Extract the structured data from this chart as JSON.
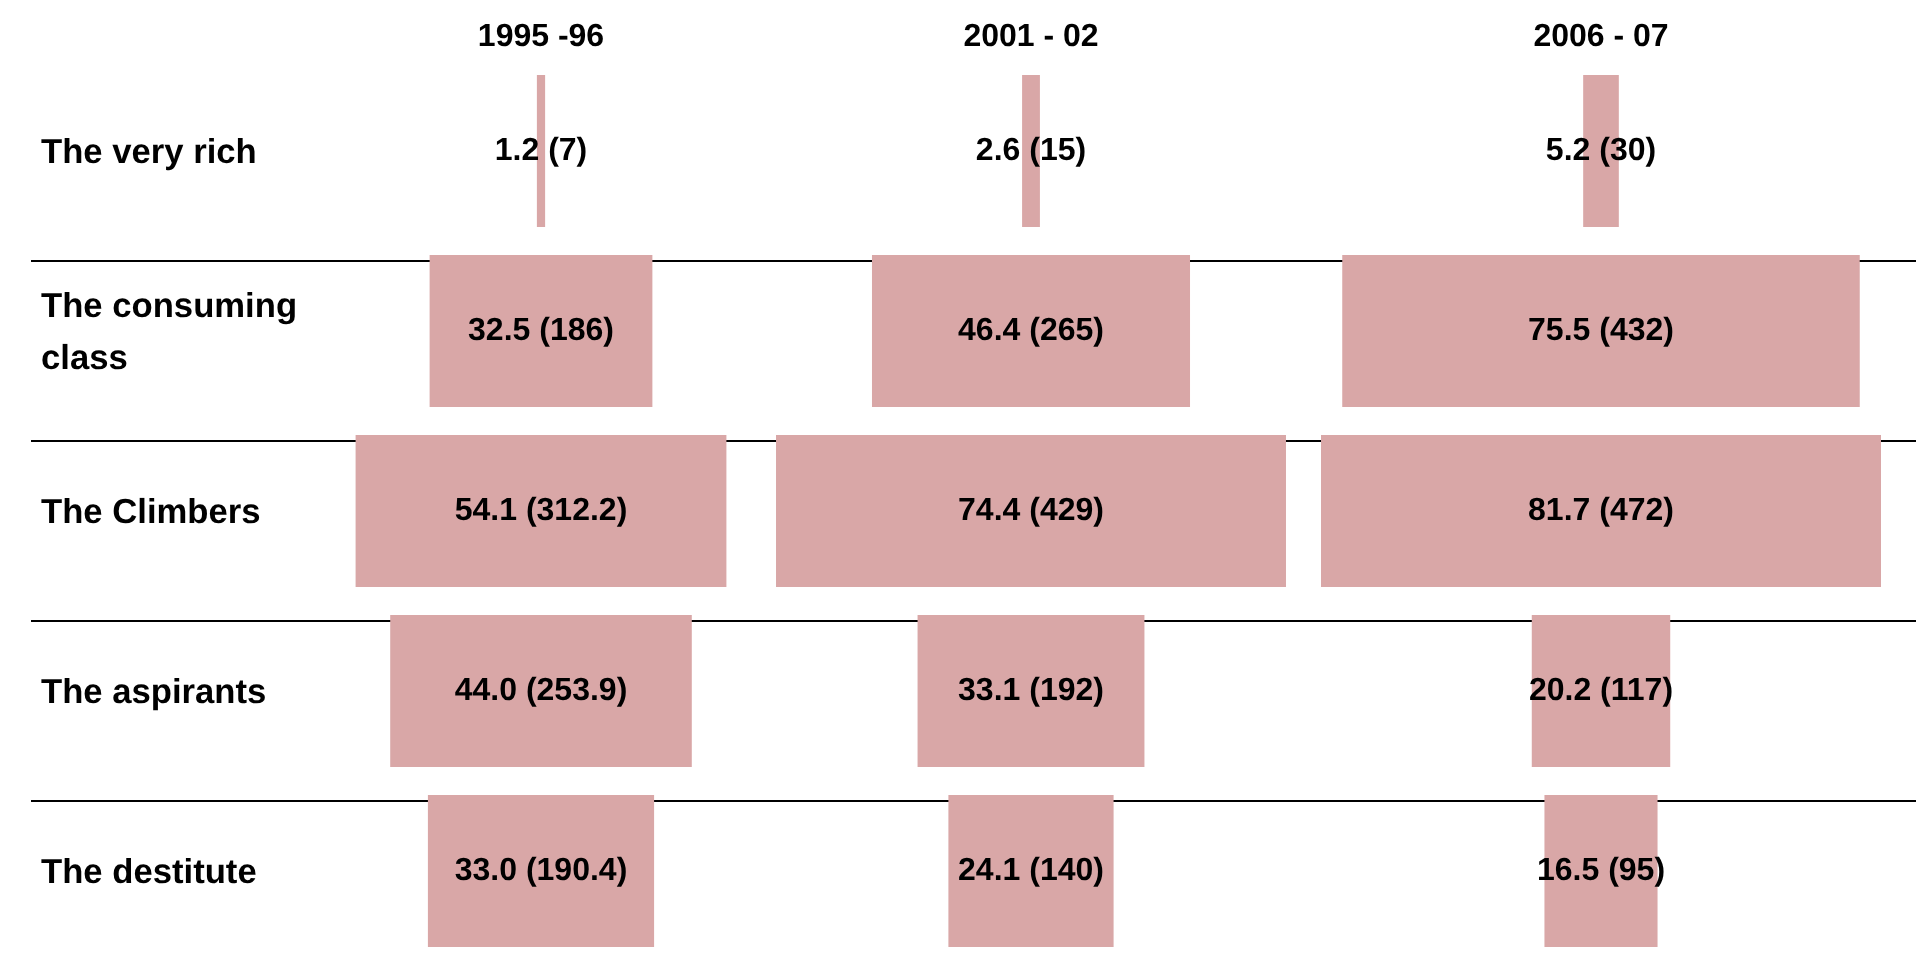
{
  "chart_data": {
    "type": "other",
    "categories": [
      "The very rich",
      "The consuming class",
      "The Climbers",
      "The aspirants",
      "The destitute"
    ],
    "series": [
      {
        "name": "1995 -96",
        "color": "#d9a7a7",
        "values": [
          1.2,
          32.5,
          54.1,
          44.0,
          33.0
        ],
        "value_labels": [
          "1.2 (7)",
          "32.5 (186)",
          "54.1 (312.2)",
          "44.0 (253.9)",
          "33.0 (190.4)"
        ]
      },
      {
        "name": "2001 - 02",
        "color": "#d9a7a7",
        "values": [
          2.6,
          46.4,
          74.4,
          33.1,
          24.1
        ],
        "value_labels": [
          "2.6 (15)",
          "46.4 (265)",
          "74.4 (429)",
          "33.1 (192)",
          "24.1 (140)"
        ]
      },
      {
        "name": "2006 - 07",
        "color": "#d9a7a7",
        "values": [
          5.2,
          75.5,
          81.7,
          20.2,
          16.5
        ],
        "value_labels": [
          "5.2 (30)",
          "75.5 (432)",
          "81.7 (472)",
          "20.2 (117)",
          "16.5 (95)"
        ]
      }
    ]
  }
}
